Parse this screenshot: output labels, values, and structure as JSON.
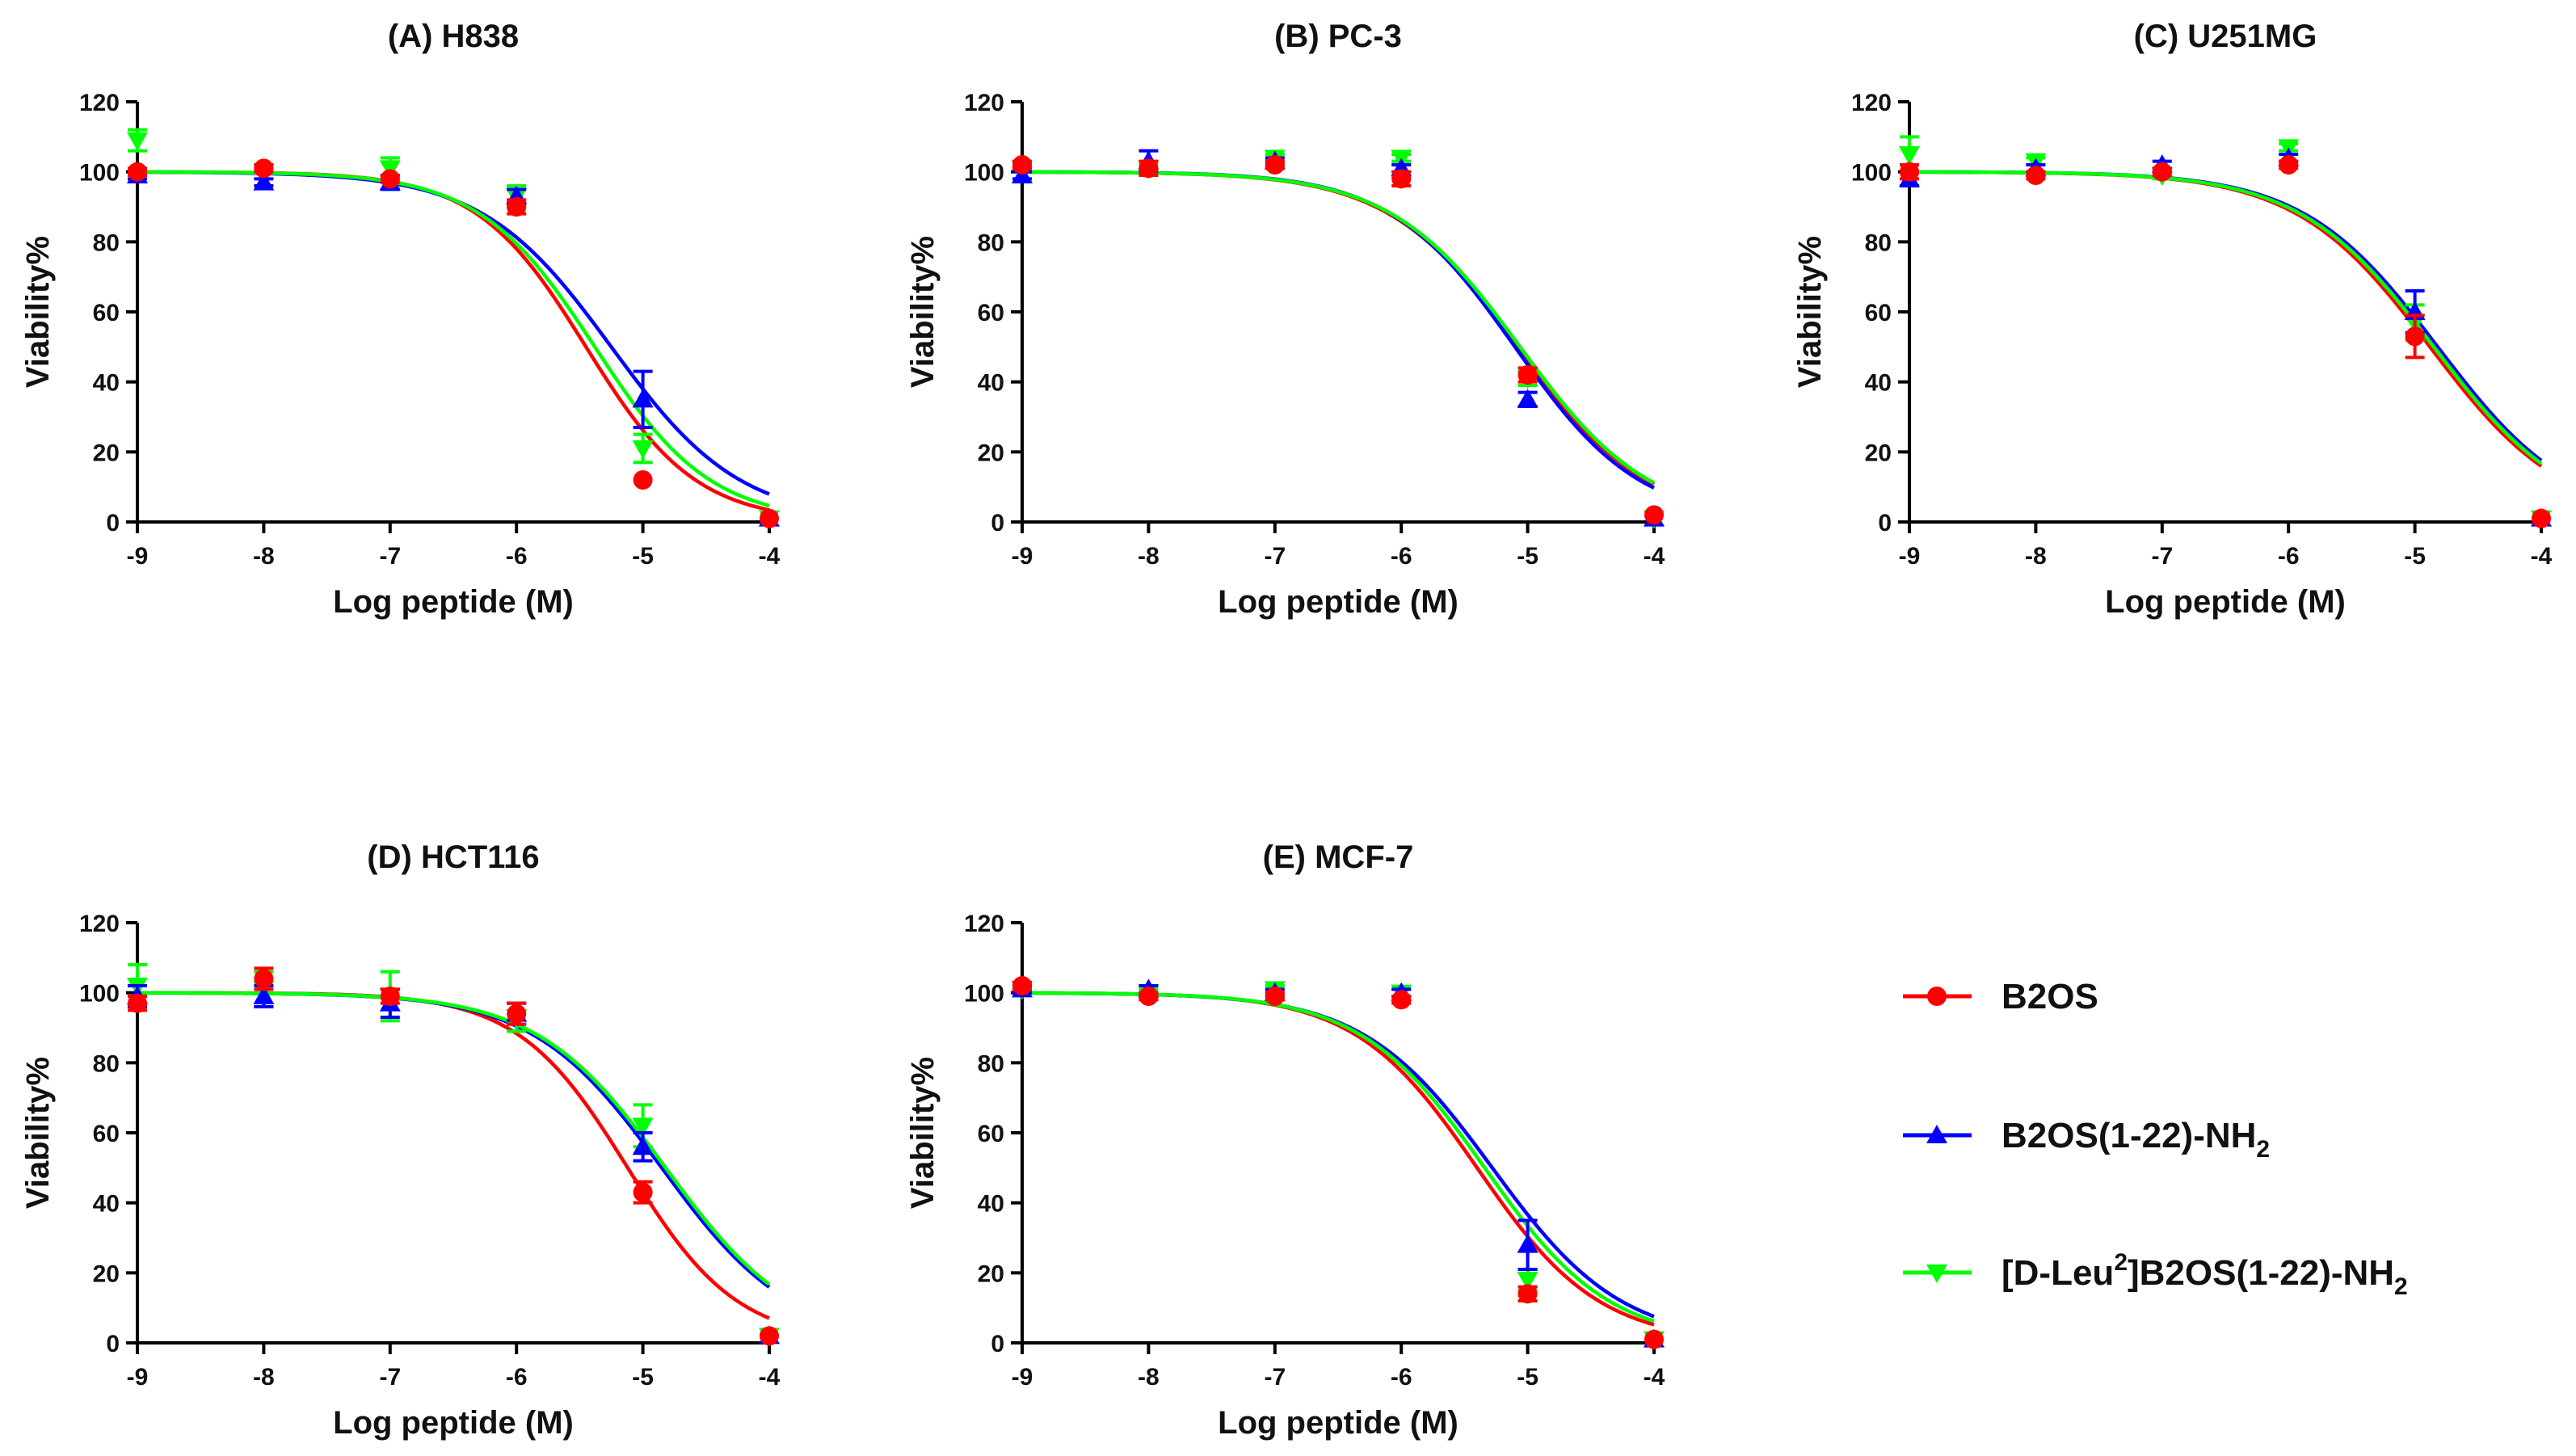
{
  "chart_data": {
    "panels": [
      {
        "type": "line",
        "title": "(A) H838",
        "xlabel": "Log peptide (M)",
        "ylabel": "Viability%",
        "xlim": [
          -9,
          -4
        ],
        "ylim": [
          0,
          120
        ],
        "x_ticks": [
          "-9",
          "-8",
          "-7",
          "-6",
          "-5",
          "-4"
        ],
        "y_ticks": [
          "0",
          "20",
          "40",
          "60",
          "80",
          "100",
          "120"
        ],
        "curves": [
          {
            "series": "B2OS",
            "ic50": -5.45,
            "hill": 1.0
          },
          {
            "series": "B2OS(1-22)-NH2",
            "ic50": -5.25,
            "hill": 0.85
          },
          {
            "series": "[D-Leu2]B2OS(1-22)-NH2",
            "ic50": -5.38,
            "hill": 0.95
          }
        ],
        "points": [
          {
            "series": "B2OS",
            "x": [
              -9,
              -8,
              -7,
              -6,
              -5,
              -4
            ],
            "y": [
              100,
              101,
              98,
              90,
              12,
              1
            ],
            "err": [
              1,
              1,
              1,
              2,
              0,
              0
            ]
          },
          {
            "series": "B2OS(1-22)-NH2",
            "x": [
              -9,
              -8,
              -7,
              -6,
              -5,
              -4
            ],
            "y": [
              99,
              97,
              97,
              93,
              35,
              1
            ],
            "err": [
              1,
              1,
              2,
              2,
              8,
              0
            ]
          },
          {
            "series": "[D-Leu2]B2OS(1-22)-NH2",
            "x": [
              -9,
              -8,
              -7,
              -6,
              -5,
              -4
            ],
            "y": [
              109,
              100,
              101,
              93,
              21,
              1
            ],
            "err": [
              3,
              0,
              3,
              3,
              4,
              0
            ]
          }
        ]
      },
      {
        "type": "line",
        "title": "(B) PC-3",
        "xlabel": "Log peptide (M)",
        "ylabel": "Viability%",
        "xlim": [
          -9,
          -4
        ],
        "ylim": [
          0,
          120
        ],
        "x_ticks": [
          "-9",
          "-8",
          "-7",
          "-6",
          "-5",
          "-4"
        ],
        "y_ticks": [
          "0",
          "20",
          "40",
          "60",
          "80",
          "100",
          "120"
        ],
        "curves": [
          {
            "series": "B2OS",
            "ic50": -5.08,
            "hill": 0.85
          },
          {
            "series": "B2OS(1-22)-NH2",
            "ic50": -5.1,
            "hill": 0.88
          },
          {
            "series": "[D-Leu2]B2OS(1-22)-NH2",
            "ic50": -5.06,
            "hill": 0.85
          }
        ],
        "points": [
          {
            "series": "B2OS",
            "x": [
              -9,
              -8,
              -7,
              -6,
              -5,
              -4
            ],
            "y": [
              102,
              101,
              102,
              98,
              42,
              2
            ],
            "err": [
              1,
              2,
              1,
              2,
              2,
              0
            ]
          },
          {
            "series": "B2OS(1-22)-NH2",
            "x": [
              -9,
              -8,
              -7,
              -6,
              -5,
              -4
            ],
            "y": [
              99,
              103,
              103,
              101,
              35,
              1
            ],
            "err": [
              1,
              3,
              1,
              1,
              2,
              0
            ]
          },
          {
            "series": "[D-Leu2]B2OS(1-22)-NH2",
            "x": [
              -9,
              -8,
              -7,
              -6,
              -5,
              -4
            ],
            "y": [
              101,
              101,
              104,
              104,
              41,
              1
            ],
            "err": [
              1,
              1,
              1,
              1,
              2,
              0
            ]
          }
        ]
      },
      {
        "type": "line",
        "title": "(C) U251MG",
        "xlabel": "Log peptide (M)",
        "ylabel": "Viability%",
        "xlim": [
          -9,
          -4
        ],
        "ylim": [
          0,
          120
        ],
        "x_ticks": [
          "-9",
          "-8",
          "-7",
          "-6",
          "-5",
          "-4"
        ],
        "y_ticks": [
          "0",
          "20",
          "40",
          "60",
          "80",
          "100",
          "120"
        ],
        "curves": [
          {
            "series": "B2OS",
            "ic50": -4.88,
            "hill": 0.82
          },
          {
            "series": "B2OS(1-22)-NH2",
            "ic50": -4.82,
            "hill": 0.82
          },
          {
            "series": "[D-Leu2]B2OS(1-22)-NH2",
            "ic50": -4.85,
            "hill": 0.82
          }
        ],
        "points": [
          {
            "series": "B2OS",
            "x": [
              -9,
              -8,
              -7,
              -6,
              -5,
              -4
            ],
            "y": [
              100,
              99,
              100,
              102,
              53,
              1
            ],
            "err": [
              2,
              1,
              1,
              1,
              6,
              0
            ]
          },
          {
            "series": "B2OS(1-22)-NH2",
            "x": [
              -9,
              -8,
              -7,
              -6,
              -5,
              -4
            ],
            "y": [
              98,
              101,
              102,
              104,
              60,
              1
            ],
            "err": [
              2,
              1,
              1,
              1,
              6,
              0
            ]
          },
          {
            "series": "[D-Leu2]B2OS(1-22)-NH2",
            "x": [
              -9,
              -8,
              -7,
              -6,
              -5,
              -4
            ],
            "y": [
              105,
              103,
              99,
              107,
              57,
              1
            ],
            "err": [
              5,
              1,
              1,
              1,
              5,
              0
            ]
          }
        ]
      },
      {
        "type": "line",
        "title": "(D) HCT116",
        "xlabel": "Log peptide (M)",
        "ylabel": "Viability%",
        "xlim": [
          -9,
          -4
        ],
        "ylim": [
          0,
          120
        ],
        "x_ticks": [
          "-9",
          "-8",
          "-7",
          "-6",
          "-5",
          "-4"
        ],
        "y_ticks": [
          "0",
          "20",
          "40",
          "60",
          "80",
          "100",
          "120"
        ],
        "curves": [
          {
            "series": "B2OS",
            "ic50": -5.12,
            "hill": 1.0
          },
          {
            "series": "B2OS(1-22)-NH2",
            "ic50": -4.85,
            "hill": 0.85
          },
          {
            "series": "[D-Leu2]B2OS(1-22)-NH2",
            "ic50": -4.82,
            "hill": 0.85
          }
        ],
        "points": [
          {
            "series": "B2OS",
            "x": [
              -9,
              -8,
              -7,
              -6,
              -5,
              -4
            ],
            "y": [
              97,
              104,
              99,
              94,
              43,
              2
            ],
            "err": [
              2,
              3,
              2,
              3,
              3,
              0
            ]
          },
          {
            "series": "B2OS(1-22)-NH2",
            "x": [
              -9,
              -8,
              -7,
              -6,
              -5,
              -4
            ],
            "y": [
              99,
              99,
              97,
              94,
              56,
              2
            ],
            "err": [
              3,
              3,
              4,
              3,
              4,
              0
            ]
          },
          {
            "series": "[D-Leu2]B2OS(1-22)-NH2",
            "x": [
              -9,
              -8,
              -7,
              -6,
              -5,
              -4
            ],
            "y": [
              102,
              101,
              99,
              93,
              62,
              2
            ],
            "err": [
              6,
              5,
              7,
              4,
              6,
              0
            ]
          }
        ]
      },
      {
        "type": "line",
        "title": "(E) MCF-7",
        "xlabel": "Log peptide (M)",
        "ylabel": "Viability%",
        "xlim": [
          -9,
          -4
        ],
        "ylim": [
          0,
          120
        ],
        "x_ticks": [
          "-9",
          "-8",
          "-7",
          "-6",
          "-5",
          "-4"
        ],
        "y_ticks": [
          "0",
          "20",
          "40",
          "60",
          "80",
          "100",
          "120"
        ],
        "curves": [
          {
            "series": "B2OS",
            "ic50": -5.4,
            "hill": 0.9
          },
          {
            "series": "B2OS(1-22)-NH2",
            "ic50": -5.28,
            "hill": 0.85
          },
          {
            "series": "[D-Leu2]B2OS(1-22)-NH2",
            "ic50": -5.34,
            "hill": 0.88
          }
        ],
        "points": [
          {
            "series": "B2OS",
            "x": [
              -9,
              -8,
              -7,
              -6,
              -5,
              -4
            ],
            "y": [
              102,
              99,
              99,
              98,
              14,
              1
            ],
            "err": [
              1,
              1,
              1,
              1,
              2,
              0
            ]
          },
          {
            "series": "B2OS(1-22)-NH2",
            "x": [
              -9,
              -8,
              -7,
              -6,
              -5,
              -4
            ],
            "y": [
              101,
              101,
              100,
              100,
              28,
              1
            ],
            "err": [
              1,
              1,
              1,
              1,
              7,
              0
            ]
          },
          {
            "series": "[D-Leu2]B2OS(1-22)-NH2",
            "x": [
              -9,
              -8,
              -7,
              -6,
              -5,
              -4
            ],
            "y": [
              101,
              100,
              101,
              100,
              18,
              1
            ],
            "err": [
              1,
              1,
              1,
              1,
              3,
              0
            ]
          }
        ]
      }
    ],
    "legend": {
      "placement": "lower-right",
      "entries": [
        {
          "series": "B2OS",
          "label": "B2OS",
          "sub": "",
          "tail": "",
          "sup": "",
          "color": "#ff0000",
          "marker": "circle"
        },
        {
          "series": "B2OS(1-22)-NH2",
          "label": "B2OS(1-22)-NH",
          "sub": "2",
          "tail": "",
          "sup": "",
          "color": "#0000ff",
          "marker": "triangle-up"
        },
        {
          "series": "[D-Leu2]B2OS(1-22)-NH2",
          "label": "[D-Leu",
          "sup": "2",
          "tail": "]B2OS(1-22)-NH",
          "sub": "2",
          "color": "#00ff00",
          "marker": "triangle-down"
        }
      ]
    }
  }
}
